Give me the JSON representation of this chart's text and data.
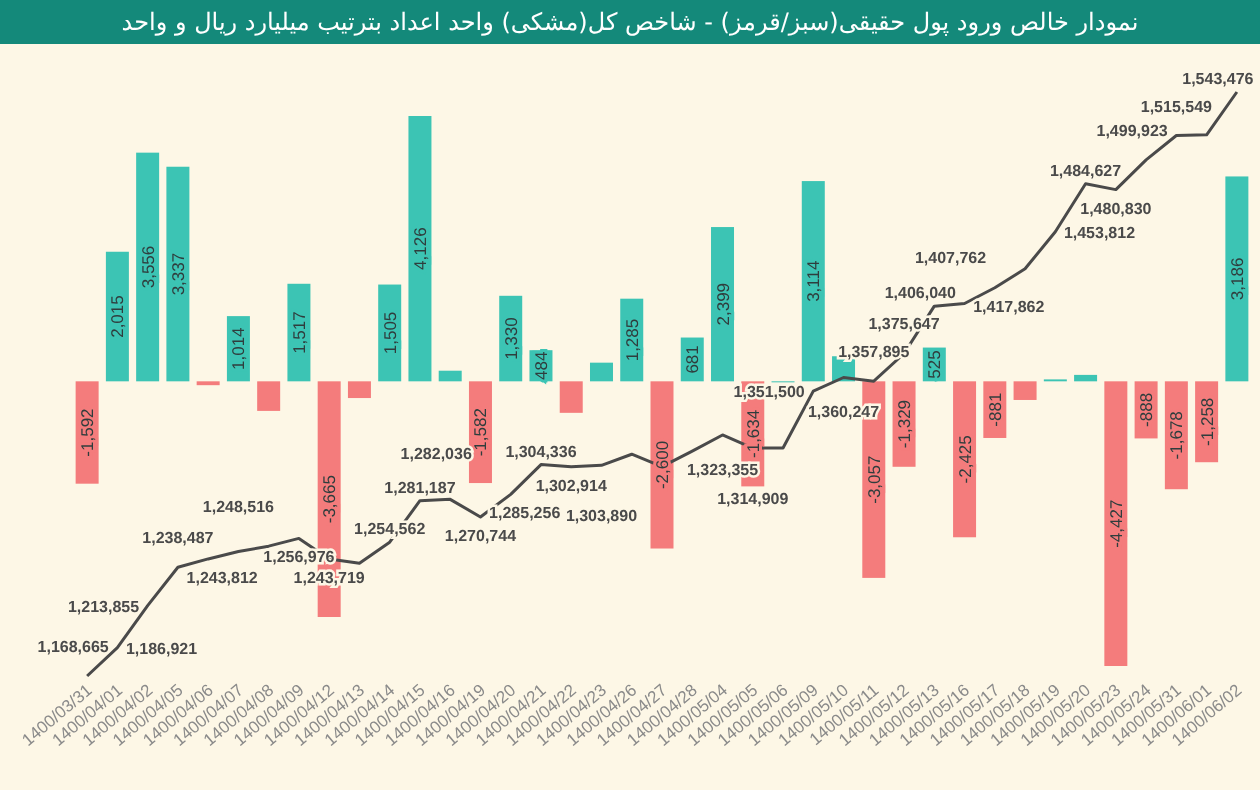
{
  "chart_data": {
    "type": "bar",
    "title": "نمودار خالص ورود پول حقیقی(سبز/قرمز) - شاخص کل(مشکی) واحد اعداد بترتیب میلیارد ریال و واحد",
    "categories": [
      "1400/03/31",
      "1400/04/01",
      "1400/04/02",
      "1400/04/05",
      "1400/04/06",
      "1400/04/07",
      "1400/04/08",
      "1400/04/09",
      "1400/04/12",
      "1400/04/13",
      "1400/04/14",
      "1400/04/15",
      "1400/04/16",
      "1400/04/19",
      "1400/04/20",
      "1400/04/21",
      "1400/04/22",
      "1400/04/23",
      "1400/04/26",
      "1400/04/27",
      "1400/04/28",
      "1400/05/04",
      "1400/05/05",
      "1400/05/06",
      "1400/05/09",
      "1400/05/10",
      "1400/05/11",
      "1400/05/12",
      "1400/05/13",
      "1400/05/16",
      "1400/05/17",
      "1400/05/18",
      "1400/05/19",
      "1400/05/20",
      "1400/05/23",
      "1400/05/24",
      "1400/05/31",
      "1400/06/01",
      "1400/06/02"
    ],
    "series": [
      {
        "values": [
          -1592,
          2015,
          3556,
          3337,
          -60,
          1014,
          -460,
          1517,
          -3665,
          -260,
          1505,
          4126,
          165,
          -1582,
          1330,
          484,
          -490,
          290,
          1285,
          -2600,
          681,
          2399,
          -1634,
          0,
          3114,
          390,
          -3057,
          -1329,
          525,
          -2425,
          -881,
          -290,
          30,
          100,
          -4427,
          -888,
          -1678,
          -1258,
          3186
        ],
        "value_labels": [
          "-1,592",
          "2,015",
          "3,556",
          "3,337",
          null,
          "1,014",
          null,
          "1,517",
          "-3,665",
          null,
          "1,505",
          "4,126",
          null,
          "-1,582",
          "1,330",
          "484",
          null,
          null,
          "1,285",
          "-2,600",
          "681",
          "2,399",
          "-1,634",
          null,
          "3,114",
          null,
          "-3,057",
          "-1,329",
          "525",
          "-2,425",
          "-881",
          null,
          null,
          null,
          "-4,427",
          "-888",
          "-1,678",
          "-1,258",
          "3,186"
        ],
        "colors": [
          "#f47c7c",
          "#3cc4b4",
          "#3cc4b4",
          "#3cc4b4",
          "#f47c7c",
          "#3cc4b4",
          "#f47c7c",
          "#3cc4b4",
          "#f47c7c",
          "#f47c7c",
          "#3cc4b4",
          "#3cc4b4",
          "#3cc4b4",
          "#f47c7c",
          "#3cc4b4",
          "#3cc4b4",
          "#f47c7c",
          "#3cc4b4",
          "#3cc4b4",
          "#f47c7c",
          "#3cc4b4",
          "#3cc4b4",
          "#f47c7c",
          "#3cc4b4",
          "#3cc4b4",
          "#3cc4b4",
          "#f47c7c",
          "#f47c7c",
          "#3cc4b4",
          "#f47c7c",
          "#f47c7c",
          "#f47c7c",
          "#3cc4b4",
          "#3cc4b4",
          "#f47c7c",
          "#f47c7c",
          "#f47c7c",
          "#f47c7c",
          "#3cc4b4"
        ]
      },
      {
        "type": "line",
        "axis": "y2",
        "color": "#4a4a4a",
        "values": [
          1168665,
          1186921,
          1213855,
          1238487,
          1243812,
          1248516,
          1252000,
          1256976,
          1243719,
          1241000,
          1254562,
          1281187,
          1282036,
          1270744,
          1285256,
          1304336,
          1302914,
          1303890,
          1311000,
          1303000,
          1313000,
          1323355,
          1314909,
          1315000,
          1351500,
          1360247,
          1357895,
          1375647,
          1406040,
          1407762,
          1417862,
          1430000,
          1453812,
          1484627,
          1480830,
          1499923,
          1515549,
          1516000,
          1543476
        ],
        "value_labels": [
          "1,168,665",
          "1,186,921",
          "1,213,855",
          "1,238,487",
          "1,243,812",
          "1,248,516",
          null,
          "1,256,976",
          "1,243,719",
          null,
          "1,254,562",
          "1,281,187",
          "1,282,036",
          "1,270,744",
          "1,285,256",
          "1,304,336",
          "1,302,914",
          "1,303,890",
          null,
          null,
          null,
          "1,323,355",
          "1,314,909",
          null,
          "1,351,500",
          "1,360,247",
          "1,357,895",
          "1,375,647",
          "1,406,040",
          "1,407,762",
          "1,417,862",
          null,
          "1,453,812",
          "1,484,627",
          "1,480,830",
          "1,499,923",
          "1,515,549",
          null,
          "1,543,476"
        ]
      }
    ]
  }
}
